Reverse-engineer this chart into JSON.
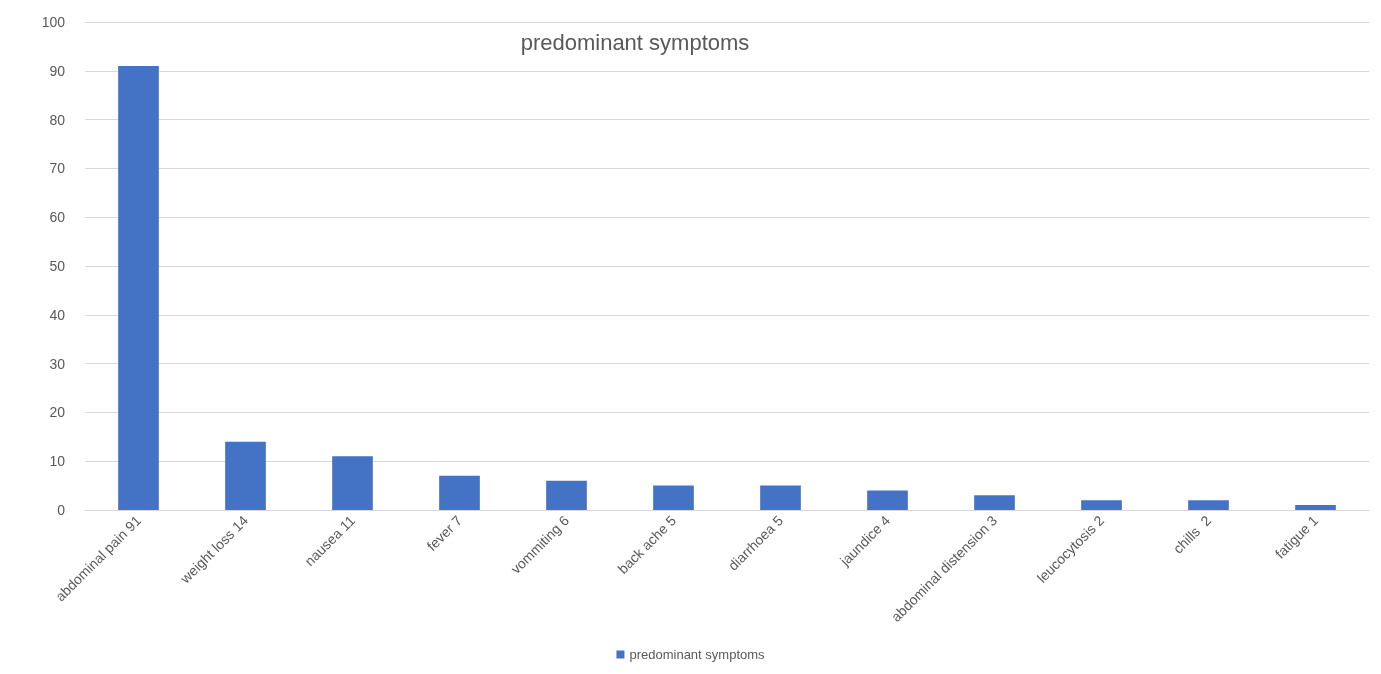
{
  "chart_data": {
    "type": "bar",
    "title": "predominant symptoms",
    "categories": [
      "abdominal pain 91",
      "weight loss 14",
      "nausea 11",
      "fever 7",
      "vommiting 6",
      "back ache 5",
      "diarrhoea 5",
      "jaundice 4",
      "abdominal distension 3",
      "leucocytosis 2",
      "chills  2",
      "fatigue 1"
    ],
    "series": [
      {
        "name": "predominant symptoms",
        "color": "#4472c4",
        "values": [
          91,
          14,
          11,
          7,
          6,
          5,
          5,
          4,
          3,
          2,
          2,
          1
        ]
      }
    ],
    "ylim": [
      0,
      100
    ],
    "yticks": [
      0,
      10,
      20,
      30,
      40,
      50,
      60,
      70,
      80,
      90,
      100
    ],
    "grid": "y",
    "legend": "bottom"
  }
}
